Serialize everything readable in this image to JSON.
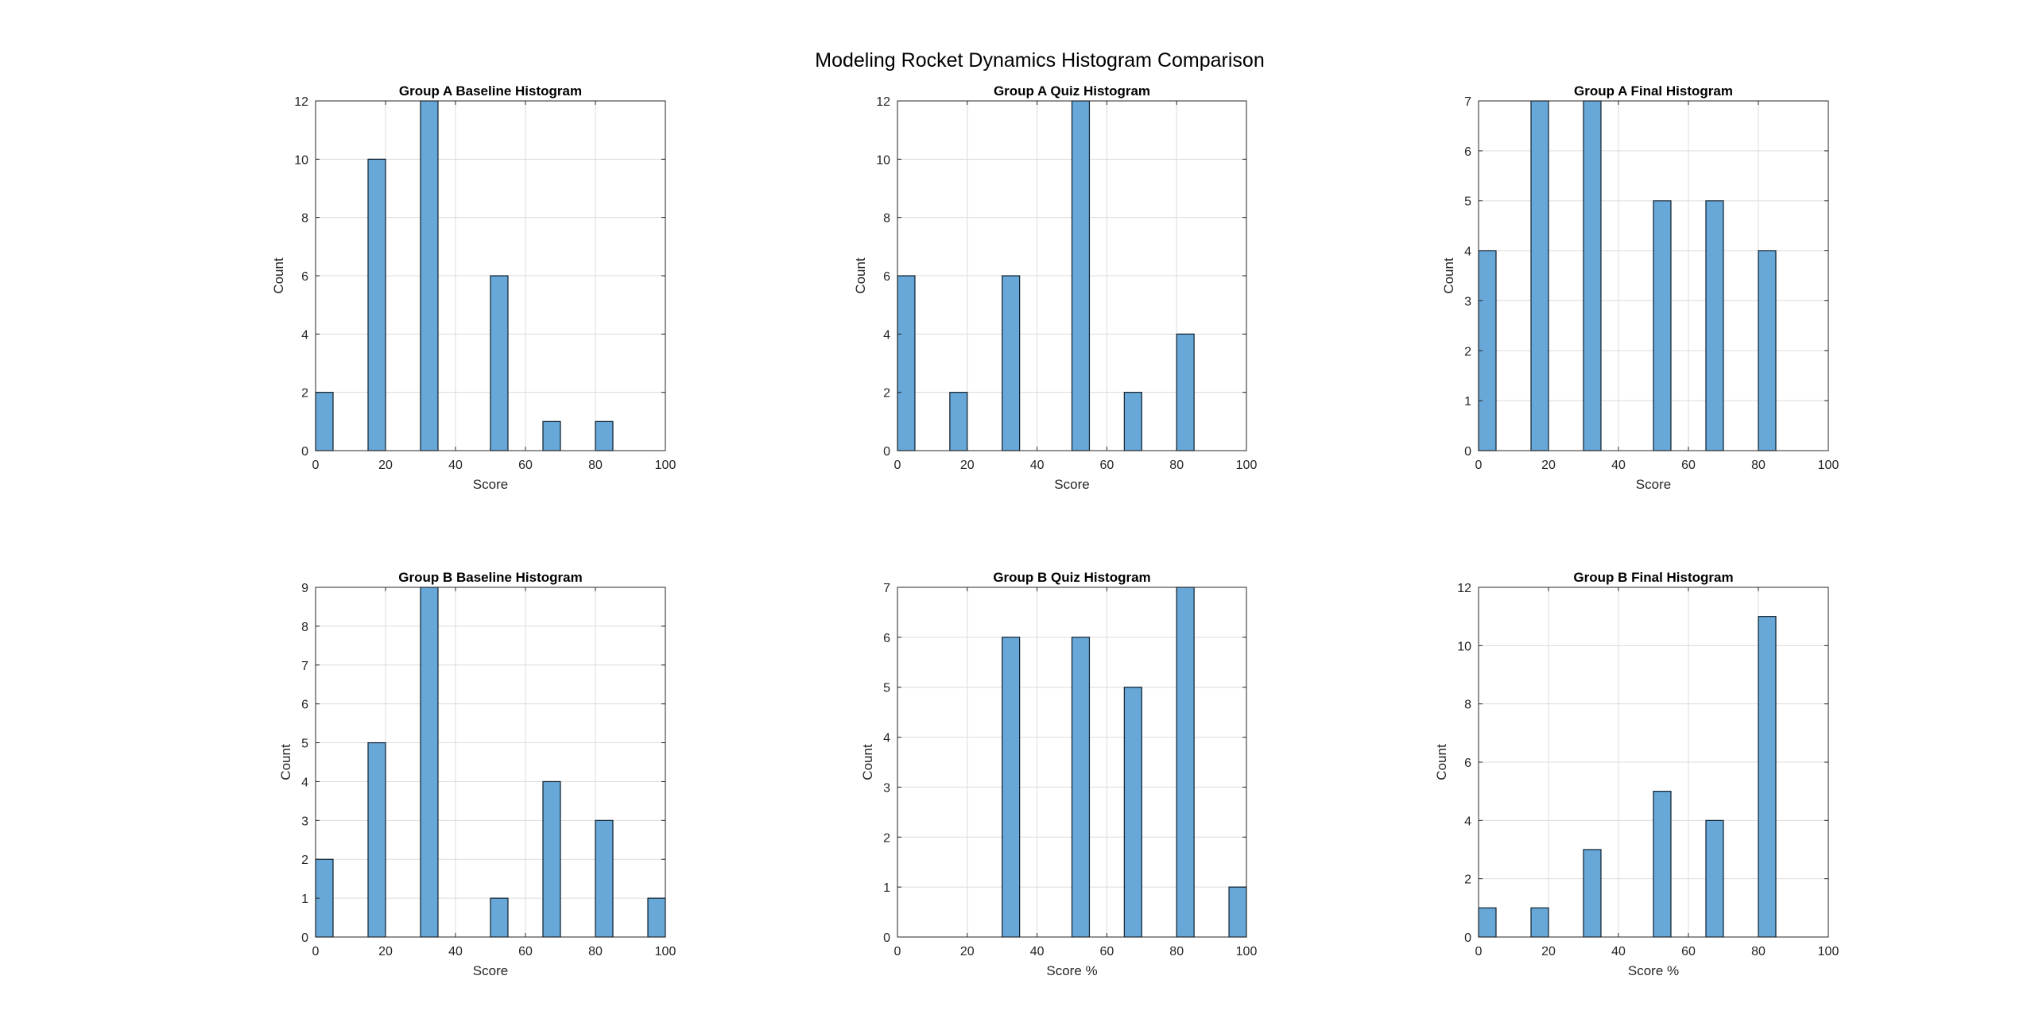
{
  "figure": {
    "title": "Modeling Rocket Dynamics Histogram Comparison"
  },
  "chart_data": [
    {
      "type": "bar",
      "title": "Group A Baseline Histogram",
      "xlabel": "Score",
      "ylabel": "Count",
      "xlim": [
        0,
        100
      ],
      "ylim": [
        0,
        12
      ],
      "xticks": [
        0,
        20,
        40,
        60,
        80,
        100
      ],
      "yticks": [
        0,
        2,
        4,
        6,
        8,
        10,
        12
      ],
      "bin_width": 5,
      "grid": true,
      "color": "#68a8d8",
      "bins": [
        {
          "x": 0,
          "count": 2
        },
        {
          "x": 15,
          "count": 10
        },
        {
          "x": 30,
          "count": 12
        },
        {
          "x": 50,
          "count": 6
        },
        {
          "x": 65,
          "count": 1
        },
        {
          "x": 80,
          "count": 1
        }
      ]
    },
    {
      "type": "bar",
      "title": "Group A Quiz Histogram",
      "xlabel": "Score",
      "ylabel": "Count",
      "xlim": [
        0,
        100
      ],
      "ylim": [
        0,
        12
      ],
      "xticks": [
        0,
        20,
        40,
        60,
        80,
        100
      ],
      "yticks": [
        0,
        2,
        4,
        6,
        8,
        10,
        12
      ],
      "bin_width": 5,
      "grid": true,
      "color": "#68a8d8",
      "bins": [
        {
          "x": 0,
          "count": 6
        },
        {
          "x": 15,
          "count": 2
        },
        {
          "x": 30,
          "count": 6
        },
        {
          "x": 50,
          "count": 12
        },
        {
          "x": 65,
          "count": 2
        },
        {
          "x": 80,
          "count": 4
        }
      ]
    },
    {
      "type": "bar",
      "title": "Group A Final Histogram",
      "xlabel": "Score",
      "ylabel": "Count",
      "xlim": [
        0,
        100
      ],
      "ylim": [
        0,
        7
      ],
      "xticks": [
        0,
        20,
        40,
        60,
        80,
        100
      ],
      "yticks": [
        0,
        1,
        2,
        3,
        4,
        5,
        6,
        7
      ],
      "bin_width": 5,
      "grid": true,
      "color": "#68a8d8",
      "bins": [
        {
          "x": 0,
          "count": 4
        },
        {
          "x": 15,
          "count": 7
        },
        {
          "x": 30,
          "count": 7
        },
        {
          "x": 50,
          "count": 5
        },
        {
          "x": 65,
          "count": 5
        },
        {
          "x": 80,
          "count": 4
        }
      ]
    },
    {
      "type": "bar",
      "title": "Group B Baseline Histogram",
      "xlabel": "Score",
      "ylabel": "Count",
      "xlim": [
        0,
        100
      ],
      "ylim": [
        0,
        9
      ],
      "xticks": [
        0,
        20,
        40,
        60,
        80,
        100
      ],
      "yticks": [
        0,
        1,
        2,
        3,
        4,
        5,
        6,
        7,
        8,
        9
      ],
      "bin_width": 5,
      "grid": true,
      "color": "#68a8d8",
      "bins": [
        {
          "x": 0,
          "count": 2
        },
        {
          "x": 15,
          "count": 5
        },
        {
          "x": 30,
          "count": 9
        },
        {
          "x": 50,
          "count": 1
        },
        {
          "x": 65,
          "count": 4
        },
        {
          "x": 80,
          "count": 3
        },
        {
          "x": 95,
          "count": 1
        }
      ]
    },
    {
      "type": "bar",
      "title": "Group B Quiz Histogram",
      "xlabel": "Score %",
      "ylabel": "Count",
      "xlim": [
        0,
        100
      ],
      "ylim": [
        0,
        7
      ],
      "xticks": [
        0,
        20,
        40,
        60,
        80,
        100
      ],
      "yticks": [
        0,
        1,
        2,
        3,
        4,
        5,
        6,
        7
      ],
      "bin_width": 5,
      "grid": true,
      "color": "#68a8d8",
      "bins": [
        {
          "x": 30,
          "count": 6
        },
        {
          "x": 50,
          "count": 6
        },
        {
          "x": 65,
          "count": 5
        },
        {
          "x": 80,
          "count": 7
        },
        {
          "x": 95,
          "count": 1
        }
      ]
    },
    {
      "type": "bar",
      "title": "Group B Final Histogram",
      "xlabel": "Score %",
      "ylabel": "Count",
      "xlim": [
        0,
        100
      ],
      "ylim": [
        0,
        12
      ],
      "xticks": [
        0,
        20,
        40,
        60,
        80,
        100
      ],
      "yticks": [
        0,
        2,
        4,
        6,
        8,
        10,
        12
      ],
      "bin_width": 5,
      "grid": true,
      "color": "#68a8d8",
      "bins": [
        {
          "x": 0,
          "count": 1
        },
        {
          "x": 15,
          "count": 1
        },
        {
          "x": 30,
          "count": 3
        },
        {
          "x": 50,
          "count": 5
        },
        {
          "x": 65,
          "count": 4
        },
        {
          "x": 80,
          "count": 11
        }
      ]
    }
  ]
}
